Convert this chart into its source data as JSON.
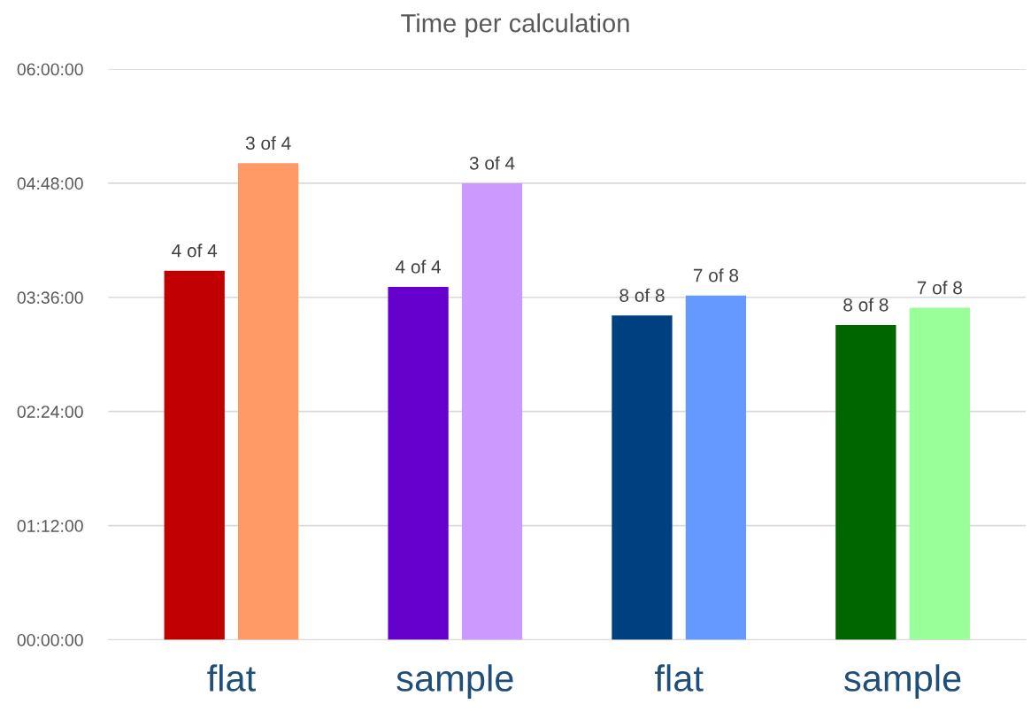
{
  "chart_data": {
    "type": "bar",
    "title": "Time per calculation",
    "categories": [
      "flat",
      "sample",
      "flat",
      "sample"
    ],
    "series": [
      {
        "colors": [
          "#c00000",
          "#6600cc",
          "#004080",
          "#006600"
        ],
        "values": [
          3.88,
          3.71,
          3.41,
          3.31
        ]
      },
      {
        "colors": [
          "#ff9966",
          "#cc99ff",
          "#6699ff",
          "#99ff99"
        ],
        "values": [
          5.01,
          4.8,
          3.62,
          3.49
        ]
      }
    ],
    "annotations": [
      "4 of 4",
      "3 of 4",
      "4 of 4",
      "3 of 4",
      "8 of 8",
      "7 of 8",
      "8 of 8",
      "7 of 8"
    ],
    "ylim": [
      0,
      6
    ],
    "yticks": [
      {
        "value": 0,
        "label": "00:00:00"
      },
      {
        "value": 1.2,
        "label": "01:12:00"
      },
      {
        "value": 2.4,
        "label": "02:24:00"
      },
      {
        "value": 3.6,
        "label": "03:36:00"
      },
      {
        "value": 4.8,
        "label": "04:48:00"
      },
      {
        "value": 6,
        "label": "06:00:00"
      }
    ],
    "grid": "y",
    "legend": false
  }
}
